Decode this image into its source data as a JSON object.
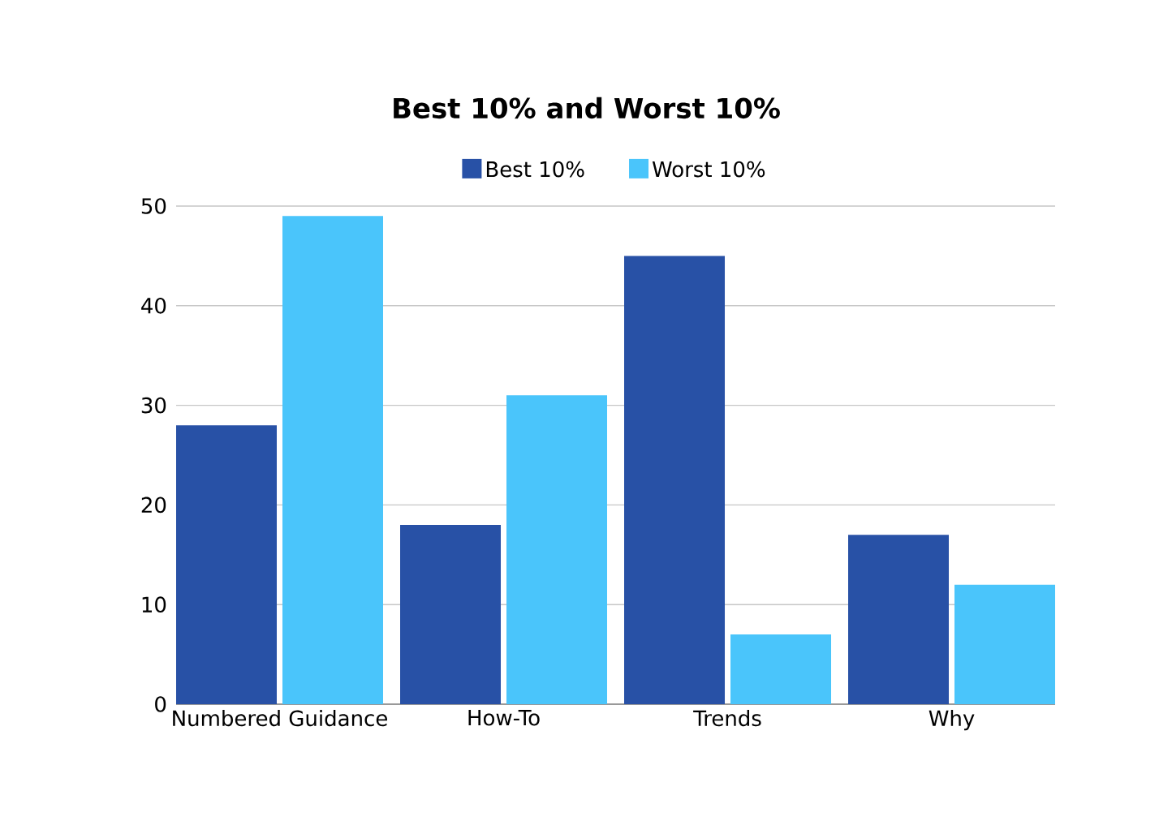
{
  "chart_data": {
    "type": "bar",
    "title": "Best 10% and Worst 10%",
    "categories": [
      "Numbered Guidance",
      "How-To",
      "Trends",
      "Why"
    ],
    "series": [
      {
        "name": "Best 10%",
        "color": "#2851a6",
        "values": [
          28,
          18,
          45,
          17
        ]
      },
      {
        "name": "Worst 10%",
        "color": "#4ac5fb",
        "values": [
          49,
          31,
          7,
          12
        ]
      }
    ],
    "ylim": [
      0,
      50
    ],
    "yticks": [
      0,
      10,
      20,
      30,
      40,
      50
    ],
    "grid": "y",
    "legend": "top"
  }
}
